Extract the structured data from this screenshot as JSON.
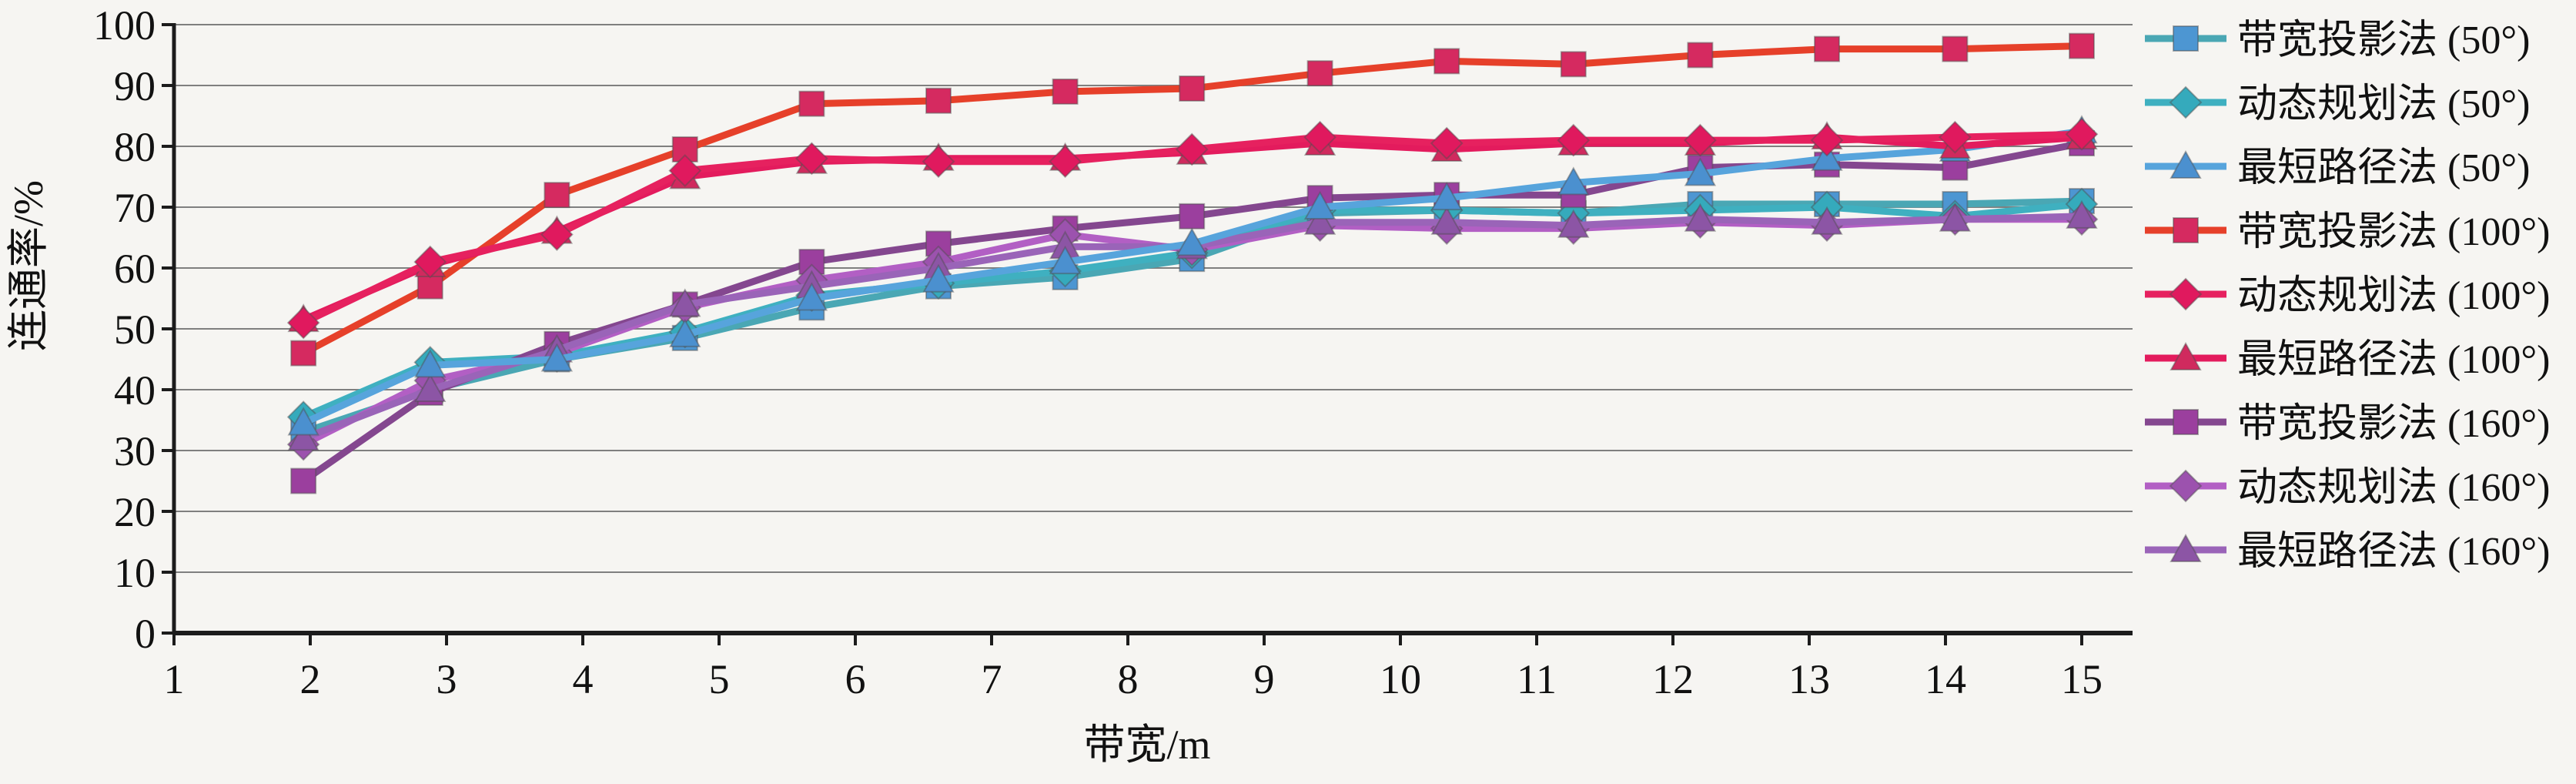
{
  "figure": {
    "description": "Line chart comparing connectivity rate versus bandwidth for three methods at three angles",
    "background": "#f6f5f2"
  },
  "colors": {
    "background": "#f6f5f2",
    "gridline": "#7f7f7f",
    "axis": "#1c1c1c",
    "text": "#111111",
    "marker_edge": "#4d4d4d"
  },
  "chart_data": {
    "type": "line",
    "title": "",
    "xlabel": "带宽/m",
    "ylabel": "连通率/%",
    "xlim": [
      1,
      15.4
    ],
    "ylim": [
      0,
      100
    ],
    "grid": true,
    "legend_position": "right",
    "x_axis_ticks": [
      1,
      2,
      3,
      4,
      5,
      6,
      7,
      8,
      9,
      10,
      11,
      12,
      13,
      14,
      15
    ],
    "y_axis_ticks": [
      0,
      10,
      20,
      30,
      40,
      50,
      60,
      70,
      80,
      90,
      100
    ],
    "x": [
      1.95,
      2.88,
      3.81,
      4.75,
      5.68,
      6.61,
      7.54,
      8.47,
      9.41,
      10.34,
      11.27,
      12.2,
      13.13,
      14.07,
      15
    ],
    "series": [
      {
        "name": "带宽投影法 (50°)",
        "marker": "square",
        "marker_color": "#4d96d2",
        "line_color": "#4aa7b4",
        "values": [
          33,
          40,
          45,
          48.5,
          53.5,
          57,
          58.5,
          61.5,
          69,
          69.5,
          69,
          70.5,
          70.5,
          70.5,
          71
        ]
      },
      {
        "name": "动态规划法 (50°)",
        "marker": "diamond",
        "marker_color": "#35aabc",
        "line_color": "#3fb0c0",
        "values": [
          35.5,
          44.5,
          45.5,
          49.5,
          55.5,
          57.5,
          59.5,
          62.5,
          69.5,
          69.5,
          69,
          69.5,
          70,
          68.5,
          70.5
        ]
      },
      {
        "name": "最短路径法 (50°)",
        "marker": "triangle",
        "marker_color": "#4b90cf",
        "line_color": "#57a4dc",
        "values": [
          34.5,
          44,
          45,
          49,
          55,
          58,
          61,
          64,
          70,
          71.5,
          74,
          75.5,
          78,
          79.5,
          82.5
        ]
      },
      {
        "name": "带宽投影法 (100°)",
        "marker": "square",
        "marker_color": "#d52a60",
        "line_color": "#e6402a",
        "values": [
          46,
          57,
          72,
          79.5,
          87,
          87.5,
          89,
          89.5,
          92,
          94,
          93.5,
          95,
          96,
          96,
          96.5
        ]
      },
      {
        "name": "动态规划法 (100°)",
        "marker": "diamond",
        "marker_color": "#e0195e",
        "line_color": "#e6215f",
        "values": [
          51,
          61,
          65.5,
          76,
          78,
          77.5,
          77.5,
          79.5,
          81.5,
          80.5,
          81,
          81,
          81,
          81.5,
          82
        ]
      },
      {
        "name": "最短路径法 (100°)",
        "marker": "triangle",
        "marker_color": "#d02a5e",
        "line_color": "#e31b5d",
        "values": [
          51.5,
          60.5,
          66,
          75,
          77.5,
          78,
          78,
          79,
          80.5,
          79.5,
          80.5,
          80.5,
          81.5,
          80,
          81.5
        ]
      },
      {
        "name": "带宽投影法 (160°)",
        "marker": "square",
        "marker_color": "#9b3f9e",
        "line_color": "#84478f",
        "values": [
          25,
          39.5,
          47.5,
          54,
          61,
          64,
          66.5,
          68.5,
          71.5,
          72,
          72,
          76.5,
          77,
          76.5,
          80.5
        ]
      },
      {
        "name": "动态规划法 (160°)",
        "marker": "diamond",
        "marker_color": "#9c52ae",
        "line_color": "#b25fc4",
        "values": [
          31,
          41.5,
          46,
          53.5,
          58,
          61,
          65.5,
          63,
          67,
          66.5,
          66.5,
          67.5,
          67,
          68,
          68
        ]
      },
      {
        "name": "最短路径法 (160°)",
        "marker": "triangle",
        "marker_color": "#8c55a5",
        "line_color": "#9a64b8",
        "values": [
          32,
          40,
          46.5,
          54,
          57,
          60,
          63.5,
          63.5,
          67.5,
          67.5,
          67,
          68,
          67.5,
          68,
          68.5
        ]
      }
    ],
    "draw_order": [
      0,
      1,
      6,
      7,
      8,
      2,
      3,
      5,
      4
    ]
  }
}
